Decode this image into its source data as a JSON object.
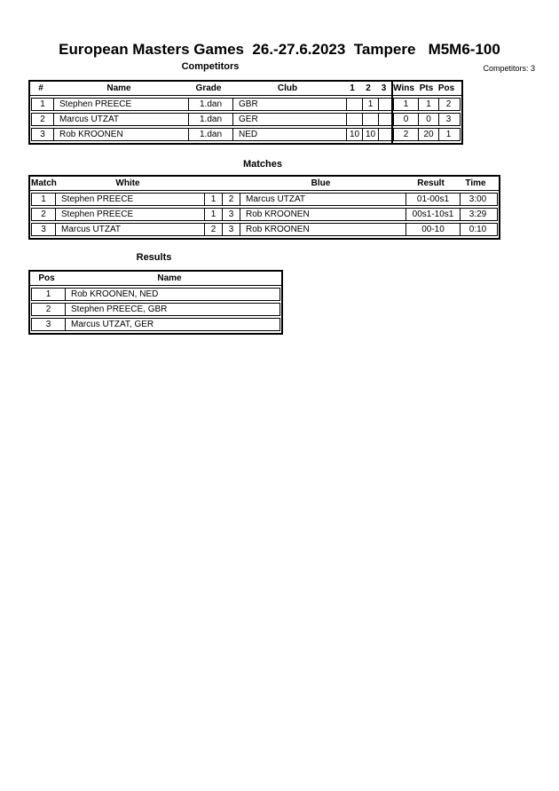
{
  "title": "European Masters Games  26.-27.6.2023  Tampere   M5M6-100",
  "colors": {
    "border": "#000000",
    "background": "#ffffff",
    "text": "#000000"
  },
  "competitors": {
    "heading": "Competitors",
    "count_label": "Competitors: 3",
    "headers": {
      "num": "#",
      "name": "Name",
      "grade": "Grade",
      "club": "Club",
      "r1": "1",
      "r2": "2",
      "r3": "3",
      "wins": "Wins",
      "pts": "Pts",
      "pos": "Pos"
    },
    "rows": [
      {
        "num": "1",
        "name": "Stephen PREECE",
        "grade": "1.dan",
        "club": "GBR",
        "r1": "",
        "r2": "1",
        "r3": "",
        "wins": "1",
        "pts": "1",
        "pos": "2"
      },
      {
        "num": "2",
        "name": "Marcus UTZAT",
        "grade": "1.dan",
        "club": "GER",
        "r1": "",
        "r2": "",
        "r3": "",
        "wins": "0",
        "pts": "0",
        "pos": "3"
      },
      {
        "num": "3",
        "name": "Rob KROONEN",
        "grade": "1.dan",
        "club": "NED",
        "r1": "10",
        "r2": "10",
        "r3": "",
        "wins": "2",
        "pts": "20",
        "pos": "1"
      }
    ]
  },
  "matches": {
    "heading": "Matches",
    "headers": {
      "match": "Match",
      "white": "White",
      "blue": "Blue",
      "result": "Result",
      "time": "Time"
    },
    "rows": [
      {
        "match": "1",
        "white": "Stephen PREECE",
        "white_num": "1",
        "blue_num": "2",
        "blue": "Marcus UTZAT",
        "result": "01-00s1",
        "time": "3:00"
      },
      {
        "match": "2",
        "white": "Stephen PREECE",
        "white_num": "1",
        "blue_num": "3",
        "blue": "Rob KROONEN",
        "result": "00s1-10s1",
        "time": "3:29"
      },
      {
        "match": "3",
        "white": "Marcus UTZAT",
        "white_num": "2",
        "blue_num": "3",
        "blue": "Rob KROONEN",
        "result": "00-10",
        "time": "0:10"
      }
    ]
  },
  "results": {
    "heading": "Results",
    "headers": {
      "pos": "Pos",
      "name": "Name"
    },
    "rows": [
      {
        "pos": "1",
        "name": "Rob KROONEN, NED"
      },
      {
        "pos": "2",
        "name": "Stephen PREECE, GBR"
      },
      {
        "pos": "3",
        "name": "Marcus UTZAT, GER"
      }
    ]
  }
}
